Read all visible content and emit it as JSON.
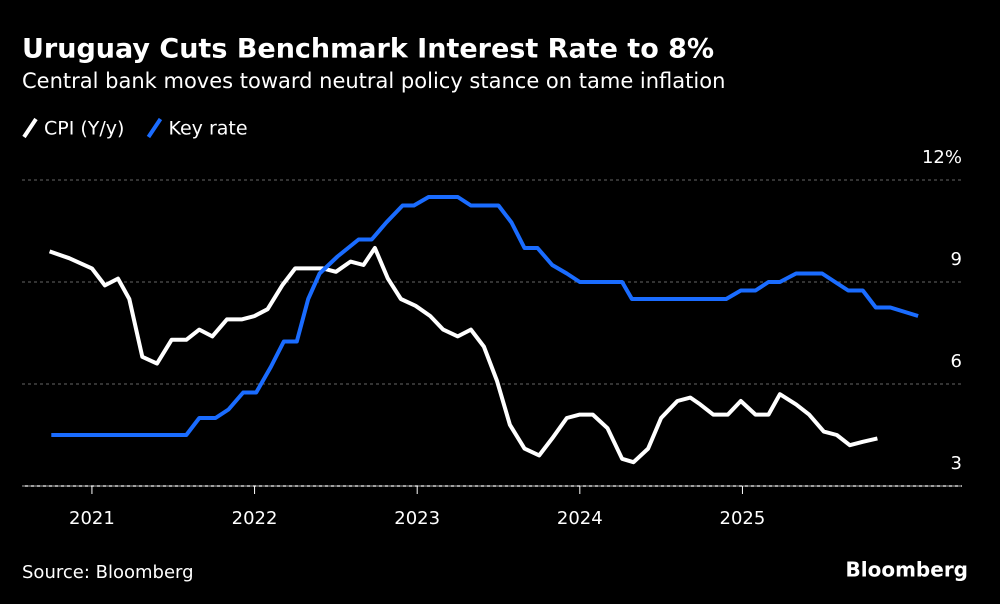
{
  "chart_data": {
    "type": "line",
    "title": "Uruguay Cuts Benchmark Interest Rate to 8%",
    "subtitle": "Central bank moves toward neutral policy stance on tame inflation",
    "source": "Source: Bloomberg",
    "logo": "Bloomberg",
    "xlim": [
      2020.57,
      2026.35
    ],
    "xticks": [
      2021,
      2022,
      2023,
      2024,
      2025
    ],
    "ylim": [
      3,
      12
    ],
    "yticks": [
      3,
      6,
      9,
      {
        "value": 12,
        "label": "12%"
      }
    ],
    "grid": true,
    "series": [
      {
        "name": "CPI (Y/y)",
        "color": "#ffffff",
        "x": [
          2020.74,
          2020.86,
          2021.0,
          2021.08,
          2021.16,
          2021.23,
          2021.31,
          2021.4,
          2021.49,
          2021.58,
          2021.66,
          2021.74,
          2021.83,
          2021.92,
          2022.0,
          2022.08,
          2022.17,
          2022.25,
          2022.34,
          2022.42,
          2022.5,
          2022.59,
          2022.67,
          2022.74,
          2022.82,
          2022.9,
          2022.99,
          2023.08,
          2023.16,
          2023.25,
          2023.33,
          2023.41,
          2023.49,
          2023.57,
          2023.66,
          2023.75,
          2023.83,
          2023.92,
          2024.0,
          2024.08,
          2024.17,
          2024.26,
          2024.33,
          2024.42,
          2024.5,
          2024.6,
          2024.68,
          2024.74,
          2024.82,
          2024.91,
          2024.99,
          2025.08,
          2025.16,
          2025.23,
          2025.33,
          2025.41,
          2025.5,
          2025.58,
          2025.66,
          2025.74,
          2025.83
        ],
        "values": [
          9.9,
          9.7,
          9.4,
          8.9,
          9.1,
          8.5,
          6.8,
          6.6,
          7.3,
          7.3,
          7.6,
          7.4,
          7.9,
          7.9,
          8.0,
          8.2,
          8.9,
          9.4,
          9.4,
          9.4,
          9.3,
          9.6,
          9.5,
          10.0,
          9.1,
          8.5,
          8.3,
          8.0,
          7.6,
          7.4,
          7.6,
          7.1,
          6.1,
          4.8,
          4.1,
          3.9,
          4.4,
          5.0,
          5.1,
          5.1,
          4.7,
          3.8,
          3.7,
          4.1,
          5.0,
          5.5,
          5.6,
          5.4,
          5.1,
          5.1,
          5.5,
          5.1,
          5.1,
          5.7,
          5.4,
          5.1,
          4.6,
          4.5,
          4.2,
          4.3,
          4.4
        ]
      },
      {
        "name": "Key rate",
        "color": "#1a6cff",
        "x": [
          2020.75,
          2021.58,
          2021.66,
          2021.76,
          2021.84,
          2021.93,
          2022.01,
          2022.1,
          2022.18,
          2022.26,
          2022.33,
          2022.4,
          2022.51,
          2022.64,
          2022.72,
          2022.81,
          2022.91,
          2022.98,
          2023.07,
          2023.25,
          2023.33,
          2023.5,
          2023.58,
          2023.66,
          2023.74,
          2023.83,
          2023.92,
          2024.0,
          2024.26,
          2024.32,
          2024.9,
          2024.99,
          2025.08,
          2025.16,
          2025.23,
          2025.33,
          2025.49,
          2025.57,
          2025.65,
          2025.74,
          2025.82,
          2025.91,
          2026.08
        ],
        "values": [
          4.5,
          4.5,
          5.0,
          5.0,
          5.25,
          5.75,
          5.75,
          6.5,
          7.25,
          7.25,
          8.5,
          9.25,
          9.75,
          10.25,
          10.25,
          10.75,
          11.25,
          11.25,
          11.5,
          11.5,
          11.25,
          11.25,
          10.75,
          10.0,
          10.0,
          9.5,
          9.25,
          9.0,
          9.0,
          8.5,
          8.5,
          8.75,
          8.75,
          9.0,
          9.0,
          9.25,
          9.25,
          9.0,
          8.75,
          8.75,
          8.25,
          8.25,
          8.0
        ]
      }
    ]
  }
}
